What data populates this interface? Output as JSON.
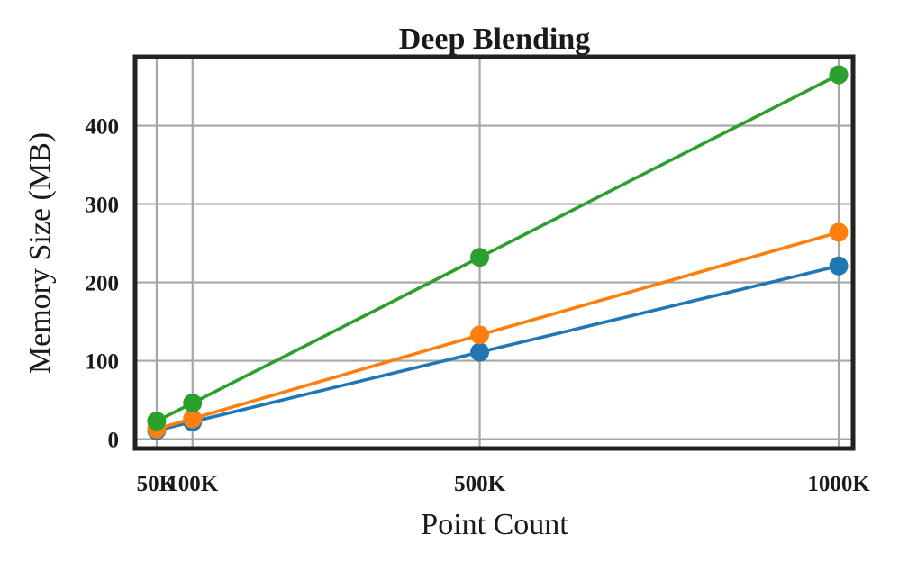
{
  "chart_data": {
    "type": "line",
    "title": "Deep Blending",
    "xlabel": "Point Count",
    "ylabel": "Memory Size (MB)",
    "x": [
      50000,
      100000,
      500000,
      1000000
    ],
    "xtick_values": [
      50000,
      100000,
      500000,
      1000000
    ],
    "xtick_labels": [
      "50K",
      "100K",
      "500K",
      "1000K"
    ],
    "yticks": [
      0,
      100,
      200,
      300,
      400
    ],
    "xlim": [
      20000,
      1020000
    ],
    "ylim": [
      -12,
      488
    ],
    "grid": true,
    "legend": "none",
    "series": [
      {
        "color": "#1f77b4",
        "values": [
          11,
          22,
          111,
          221
        ]
      },
      {
        "color": "#ff7f0e",
        "values": [
          13,
          26,
          133,
          264
        ]
      },
      {
        "color": "#2ca02c",
        "values": [
          23,
          46,
          232,
          465
        ]
      }
    ]
  }
}
